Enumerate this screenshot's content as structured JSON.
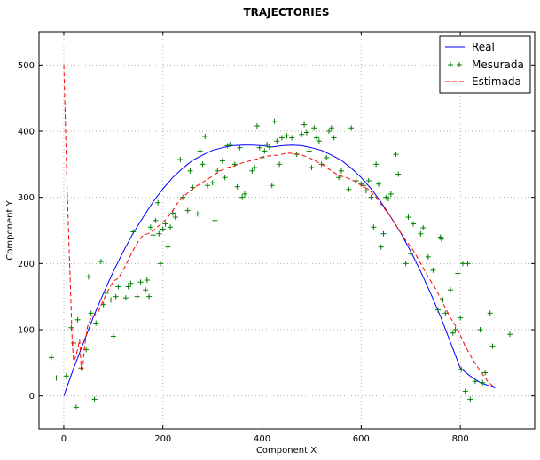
{
  "chart_data": {
    "type": "line",
    "title": "TRAJECTORIES",
    "xlabel": "Component X",
    "ylabel": "Component Y",
    "xlim": [
      -50,
      950
    ],
    "ylim": [
      -50,
      550
    ],
    "xticks": [
      0,
      200,
      400,
      600,
      800
    ],
    "yticks": [
      0,
      100,
      200,
      300,
      400,
      500
    ],
    "grid": true,
    "legend_position": "top-right",
    "series": [
      {
        "name": "Real",
        "style": "solid-line",
        "color": "#0000ff",
        "points": [
          [
            0,
            0
          ],
          [
            20,
            42
          ],
          [
            40,
            81
          ],
          [
            60,
            120
          ],
          [
            80,
            155
          ],
          [
            100,
            188
          ],
          [
            120,
            218
          ],
          [
            140,
            246
          ],
          [
            160,
            270
          ],
          [
            180,
            293
          ],
          [
            200,
            313
          ],
          [
            220,
            330
          ],
          [
            240,
            344
          ],
          [
            260,
            356
          ],
          [
            280,
            364
          ],
          [
            300,
            371
          ],
          [
            320,
            375
          ],
          [
            340,
            378
          ],
          [
            360,
            379
          ],
          [
            380,
            379
          ],
          [
            400,
            378
          ],
          [
            420,
            376
          ],
          [
            440,
            378
          ],
          [
            460,
            379
          ],
          [
            480,
            378
          ],
          [
            500,
            375
          ],
          [
            520,
            371
          ],
          [
            540,
            364
          ],
          [
            560,
            356
          ],
          [
            580,
            344
          ],
          [
            600,
            330
          ],
          [
            620,
            313
          ],
          [
            640,
            293
          ],
          [
            660,
            270
          ],
          [
            680,
            246
          ],
          [
            700,
            218
          ],
          [
            720,
            188
          ],
          [
            740,
            155
          ],
          [
            760,
            120
          ],
          [
            780,
            81
          ],
          [
            800,
            42
          ],
          [
            820,
            30
          ],
          [
            840,
            20
          ],
          [
            860,
            15
          ],
          [
            870,
            12
          ]
        ]
      },
      {
        "name": "Mesurada",
        "style": "plus-markers",
        "color": "#008000",
        "points": [
          [
            -25,
            58
          ],
          [
            -15,
            27
          ],
          [
            5,
            30
          ],
          [
            15,
            103
          ],
          [
            20,
            80
          ],
          [
            25,
            -17
          ],
          [
            28,
            115
          ],
          [
            35,
            42
          ],
          [
            45,
            70
          ],
          [
            50,
            180
          ],
          [
            55,
            125
          ],
          [
            62,
            -5
          ],
          [
            65,
            110
          ],
          [
            75,
            203
          ],
          [
            80,
            138
          ],
          [
            85,
            155
          ],
          [
            95,
            145
          ],
          [
            100,
            90
          ],
          [
            105,
            150
          ],
          [
            110,
            165
          ],
          [
            125,
            148
          ],
          [
            130,
            165
          ],
          [
            135,
            170
          ],
          [
            140,
            248
          ],
          [
            148,
            150
          ],
          [
            155,
            172
          ],
          [
            165,
            160
          ],
          [
            168,
            175
          ],
          [
            172,
            150
          ],
          [
            175,
            255
          ],
          [
            180,
            243
          ],
          [
            185,
            265
          ],
          [
            190,
            292
          ],
          [
            192,
            245
          ],
          [
            195,
            200
          ],
          [
            200,
            252
          ],
          [
            205,
            260
          ],
          [
            210,
            225
          ],
          [
            215,
            255
          ],
          [
            220,
            276
          ],
          [
            225,
            270
          ],
          [
            235,
            357
          ],
          [
            240,
            300
          ],
          [
            250,
            280
          ],
          [
            255,
            340
          ],
          [
            260,
            315
          ],
          [
            270,
            275
          ],
          [
            275,
            370
          ],
          [
            280,
            350
          ],
          [
            285,
            392
          ],
          [
            290,
            318
          ],
          [
            300,
            322
          ],
          [
            305,
            265
          ],
          [
            310,
            340
          ],
          [
            320,
            355
          ],
          [
            325,
            330
          ],
          [
            330,
            378
          ],
          [
            335,
            380
          ],
          [
            345,
            350
          ],
          [
            350,
            316
          ],
          [
            355,
            375
          ],
          [
            360,
            300
          ],
          [
            365,
            305
          ],
          [
            380,
            340
          ],
          [
            385,
            345
          ],
          [
            390,
            408
          ],
          [
            395,
            375
          ],
          [
            400,
            360
          ],
          [
            405,
            370
          ],
          [
            410,
            380
          ],
          [
            415,
            376
          ],
          [
            420,
            318
          ],
          [
            425,
            415
          ],
          [
            430,
            385
          ],
          [
            435,
            350
          ],
          [
            440,
            390
          ],
          [
            450,
            393
          ],
          [
            460,
            390
          ],
          [
            470,
            365
          ],
          [
            480,
            395
          ],
          [
            485,
            410
          ],
          [
            490,
            398
          ],
          [
            495,
            370
          ],
          [
            500,
            345
          ],
          [
            505,
            405
          ],
          [
            510,
            390
          ],
          [
            515,
            385
          ],
          [
            520,
            350
          ],
          [
            530,
            360
          ],
          [
            535,
            400
          ],
          [
            540,
            405
          ],
          [
            545,
            390
          ],
          [
            555,
            330
          ],
          [
            560,
            340
          ],
          [
            575,
            312
          ],
          [
            580,
            405
          ],
          [
            590,
            325
          ],
          [
            600,
            320
          ],
          [
            605,
            318
          ],
          [
            610,
            310
          ],
          [
            615,
            325
          ],
          [
            620,
            300
          ],
          [
            625,
            255
          ],
          [
            630,
            350
          ],
          [
            635,
            320
          ],
          [
            640,
            225
          ],
          [
            645,
            245
          ],
          [
            650,
            300
          ],
          [
            655,
            298
          ],
          [
            660,
            305
          ],
          [
            670,
            365
          ],
          [
            675,
            335
          ],
          [
            690,
            200
          ],
          [
            695,
            270
          ],
          [
            700,
            215
          ],
          [
            705,
            260
          ],
          [
            720,
            245
          ],
          [
            725,
            254
          ],
          [
            735,
            210
          ],
          [
            745,
            190
          ],
          [
            755,
            130
          ],
          [
            760,
            240
          ],
          [
            762,
            237
          ],
          [
            765,
            145
          ],
          [
            770,
            125
          ],
          [
            780,
            160
          ],
          [
            785,
            95
          ],
          [
            790,
            100
          ],
          [
            795,
            185
          ],
          [
            800,
            118
          ],
          [
            802,
            40
          ],
          [
            805,
            200
          ],
          [
            810,
            7
          ],
          [
            815,
            200
          ],
          [
            820,
            -5
          ],
          [
            830,
            22
          ],
          [
            840,
            100
          ],
          [
            845,
            20
          ],
          [
            850,
            35
          ],
          [
            860,
            125
          ],
          [
            865,
            75
          ],
          [
            900,
            93
          ]
        ]
      },
      {
        "name": "Estimada",
        "style": "dashed-line",
        "color": "#ff0000",
        "points": [
          [
            0,
            500
          ],
          [
            3,
            420
          ],
          [
            6,
            330
          ],
          [
            10,
            240
          ],
          [
            14,
            150
          ],
          [
            17,
            80
          ],
          [
            20,
            52
          ],
          [
            24,
            60
          ],
          [
            28,
            70
          ],
          [
            32,
            85
          ],
          [
            35,
            43
          ],
          [
            38,
            40
          ],
          [
            42,
            75
          ],
          [
            48,
            105
          ],
          [
            55,
            118
          ],
          [
            62,
            122
          ],
          [
            70,
            128
          ],
          [
            80,
            145
          ],
          [
            90,
            160
          ],
          [
            100,
            173
          ],
          [
            110,
            178
          ],
          [
            120,
            190
          ],
          [
            130,
            205
          ],
          [
            140,
            220
          ],
          [
            150,
            233
          ],
          [
            160,
            243
          ],
          [
            170,
            245
          ],
          [
            180,
            250
          ],
          [
            190,
            256
          ],
          [
            200,
            262
          ],
          [
            210,
            270
          ],
          [
            220,
            280
          ],
          [
            230,
            292
          ],
          [
            240,
            300
          ],
          [
            255,
            310
          ],
          [
            270,
            318
          ],
          [
            285,
            325
          ],
          [
            300,
            332
          ],
          [
            315,
            340
          ],
          [
            330,
            345
          ],
          [
            345,
            348
          ],
          [
            360,
            352
          ],
          [
            375,
            355
          ],
          [
            390,
            358
          ],
          [
            405,
            362
          ],
          [
            420,
            363
          ],
          [
            435,
            364
          ],
          [
            450,
            367
          ],
          [
            465,
            366
          ],
          [
            480,
            364
          ],
          [
            495,
            360
          ],
          [
            510,
            354
          ],
          [
            525,
            348
          ],
          [
            540,
            340
          ],
          [
            555,
            333
          ],
          [
            570,
            330
          ],
          [
            585,
            325
          ],
          [
            600,
            318
          ],
          [
            615,
            312
          ],
          [
            630,
            300
          ],
          [
            645,
            285
          ],
          [
            660,
            270
          ],
          [
            675,
            252
          ],
          [
            690,
            235
          ],
          [
            705,
            220
          ],
          [
            720,
            200
          ],
          [
            735,
            180
          ],
          [
            750,
            162
          ],
          [
            765,
            140
          ],
          [
            780,
            118
          ],
          [
            795,
            100
          ],
          [
            810,
            75
          ],
          [
            825,
            55
          ],
          [
            840,
            38
          ],
          [
            855,
            22
          ],
          [
            870,
            12
          ]
        ]
      }
    ]
  }
}
